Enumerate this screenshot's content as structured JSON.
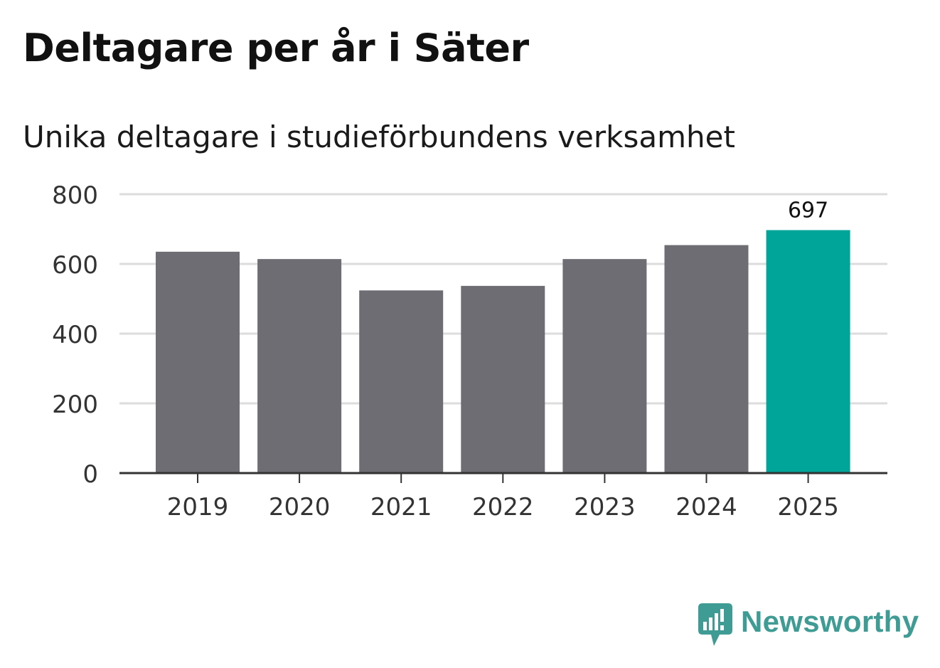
{
  "chart_data": {
    "type": "bar",
    "title": "Deltagare per år i Säter",
    "subtitle": "Unika deltagare i studieförbundens verksamhet",
    "categories": [
      "2019",
      "2020",
      "2021",
      "2022",
      "2023",
      "2024",
      "2025"
    ],
    "values": [
      635,
      614,
      524,
      537,
      614,
      654,
      697
    ],
    "xlabel": "",
    "ylabel": "",
    "ylim": [
      0,
      800
    ],
    "yticks": [
      "0",
      "200",
      "400",
      "600",
      "800"
    ],
    "grid": true,
    "highlight_index": 6,
    "highlight_label": "697",
    "bar_color": "#6e6d73",
    "highlight_color": "#00a59a"
  },
  "branding": {
    "name": "Newsworthy",
    "color": "#3f9c95"
  }
}
